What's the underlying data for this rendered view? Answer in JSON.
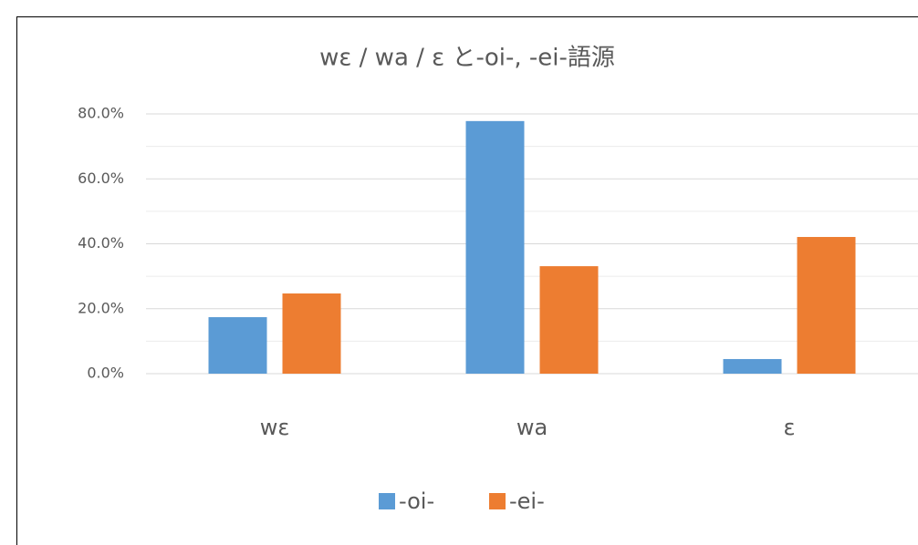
{
  "chart_data": {
    "type": "bar",
    "title": "wε / wa / ε と-oi-, -ei-語源",
    "categories": [
      "wε",
      "wa",
      "ε"
    ],
    "series": [
      {
        "name": "-oi-",
        "color": "#5b9bd5",
        "values": [
          17.4,
          77.8,
          4.5
        ]
      },
      {
        "name": "-ei-",
        "color": "#ed7d31",
        "values": [
          24.7,
          33.1,
          42.1
        ]
      }
    ],
    "ylim": [
      0,
      80
    ],
    "yticks": [
      {
        "value": 0,
        "label": "0.0%"
      },
      {
        "value": 20,
        "label": "20.0%"
      },
      {
        "value": 40,
        "label": "40.0%"
      },
      {
        "value": 60,
        "label": "60.0%"
      },
      {
        "value": 80,
        "label": "80.0%"
      }
    ],
    "minor_yticks": [
      10,
      30,
      50,
      70
    ],
    "grid": true,
    "legend": "bottom"
  }
}
